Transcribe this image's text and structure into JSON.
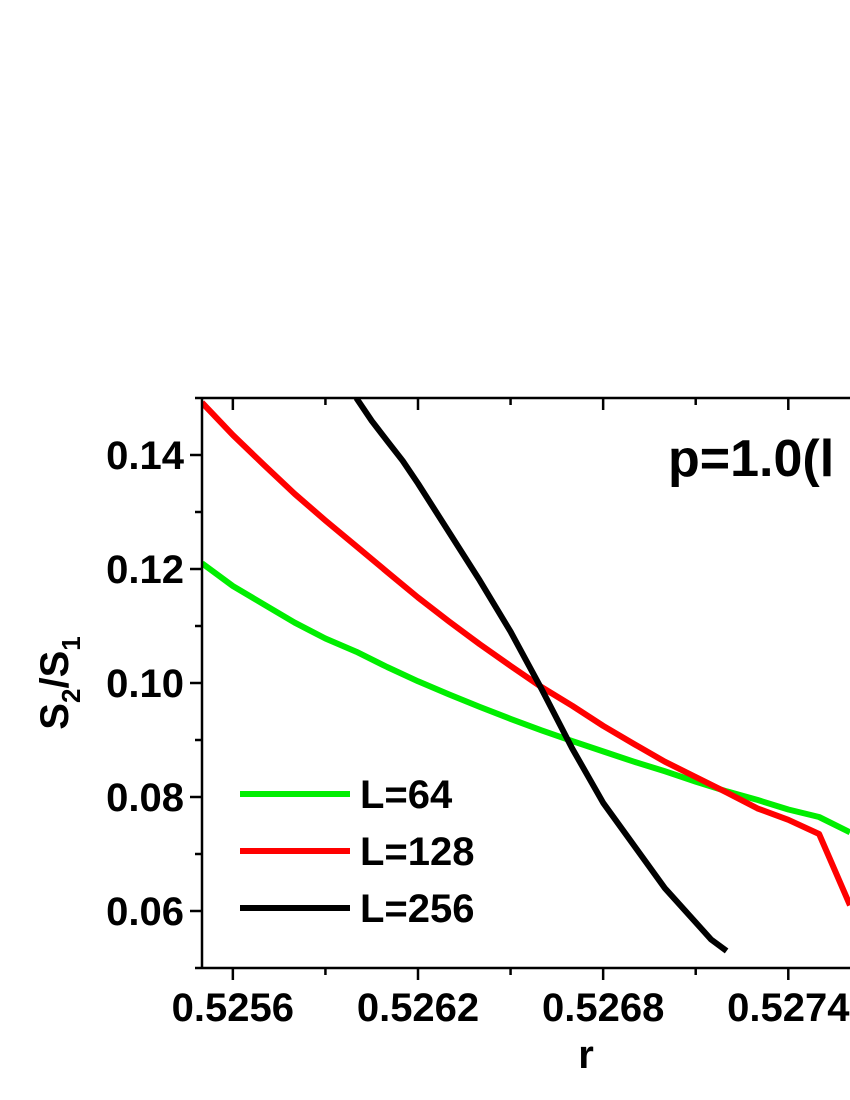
{
  "chart_data": {
    "type": "line",
    "title": "",
    "xlabel": "r",
    "ylabel_base": "S",
    "ylabel_sub1": "2",
    "ylabel_sep": "/S",
    "ylabel_sub2": "1",
    "annotation": "p=1.0(l",
    "xlim": [
      0.5255,
      0.5276
    ],
    "ylim": [
      0.05,
      0.15
    ],
    "x_ticks": [
      0.5256,
      0.5262,
      0.5268,
      0.5274
    ],
    "x_tick_labels": [
      "0.5256",
      "0.5262",
      "0.5268",
      "0.5274"
    ],
    "x_minor_ticks": [
      0.5259,
      0.5265,
      0.5271
    ],
    "y_ticks": [
      0.06,
      0.08,
      0.1,
      0.12,
      0.14
    ],
    "y_tick_labels": [
      "0.06",
      "0.08",
      "0.10",
      "0.12",
      "0.14"
    ],
    "y_minor_ticks": [
      0.05,
      0.07,
      0.09,
      0.11,
      0.13,
      0.15
    ],
    "legend_position": "bottom-left",
    "series": [
      {
        "name": "L=64",
        "color": "#00ee00",
        "x": [
          0.5255,
          0.5256,
          0.5257,
          0.5258,
          0.5259,
          0.526,
          0.5261,
          0.5262,
          0.5263,
          0.5264,
          0.5265,
          0.5266,
          0.5267,
          0.5268,
          0.5269,
          0.527,
          0.5271,
          0.5272,
          0.5273,
          0.5274,
          0.5275,
          0.5276
        ],
        "y": [
          0.121,
          0.117,
          0.1138,
          0.1106,
          0.1078,
          0.1055,
          0.1028,
          0.1003,
          0.098,
          0.0958,
          0.0937,
          0.0917,
          0.0898,
          0.088,
          0.0862,
          0.0845,
          0.0827,
          0.081,
          0.0795,
          0.0778,
          0.0765,
          0.0738
        ]
      },
      {
        "name": "L=128",
        "color": "#ff0000",
        "x": [
          0.5255,
          0.5256,
          0.5257,
          0.5258,
          0.5259,
          0.526,
          0.5261,
          0.5262,
          0.5263,
          0.5264,
          0.5265,
          0.5266,
          0.5267,
          0.5268,
          0.5269,
          0.527,
          0.5271,
          0.5272,
          0.5273,
          0.5274,
          0.5275,
          0.5276
        ],
        "y": [
          0.1492,
          0.1435,
          0.1383,
          0.1332,
          0.1285,
          0.124,
          0.1195,
          0.115,
          0.1108,
          0.1068,
          0.103,
          0.0993,
          0.096,
          0.0925,
          0.0893,
          0.0862,
          0.0835,
          0.0808,
          0.078,
          0.076,
          0.0735,
          0.061
        ]
      },
      {
        "name": "L=256",
        "color": "#000000",
        "x": [
          0.526,
          0.52605,
          0.5261,
          0.52615,
          0.5262,
          0.5263,
          0.5264,
          0.5265,
          0.5266,
          0.5267,
          0.5268,
          0.5269,
          0.527,
          0.5271,
          0.52715,
          0.5272
        ],
        "y": [
          0.15,
          0.146,
          0.1425,
          0.139,
          0.135,
          0.1265,
          0.118,
          0.109,
          0.099,
          0.0885,
          0.079,
          0.0715,
          0.064,
          0.058,
          0.055,
          0.053
        ]
      }
    ]
  }
}
